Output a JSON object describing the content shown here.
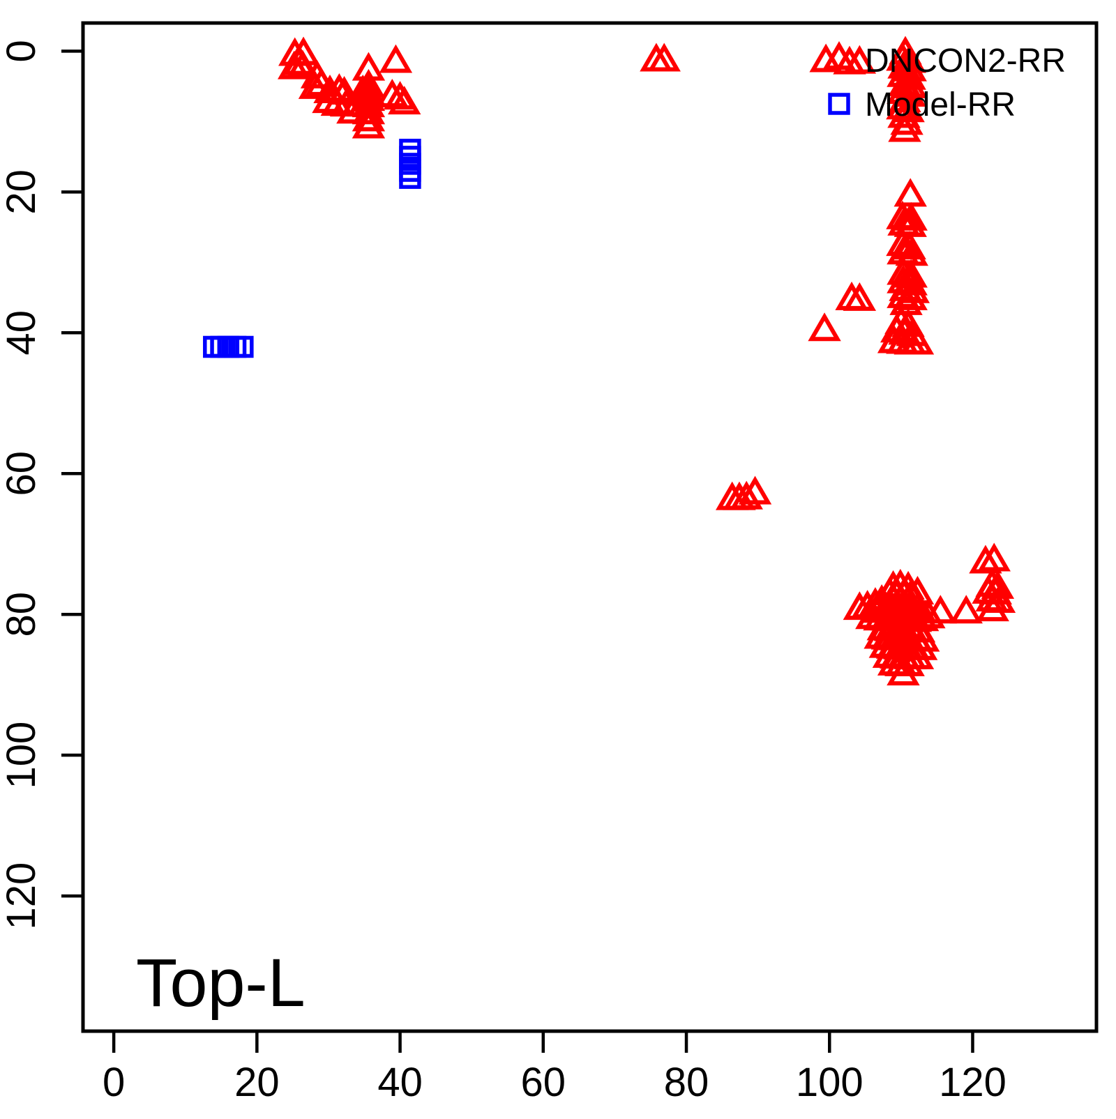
{
  "figure": {
    "annotation": "Top-L",
    "background": "#ffffff",
    "legend": {
      "position": "topright",
      "items": [
        {
          "label": "DNCON2-RR",
          "symbol": "triangle-up-open",
          "color": "#ff0000"
        },
        {
          "label": "Model-RR",
          "symbol": "square-open",
          "color": "#0000ff"
        }
      ]
    }
  },
  "chart_data": {
    "type": "scatter",
    "title": "",
    "xlabel": "",
    "ylabel": "",
    "grid": false,
    "y_axis_reversed": true,
    "xlim": [
      -4.3,
      137.3
    ],
    "ylim": [
      -4.0,
      139.2
    ],
    "x_ticks": [
      0,
      20,
      40,
      60,
      80,
      100,
      120
    ],
    "y_ticks": [
      0,
      20,
      40,
      60,
      80,
      100,
      120
    ],
    "annotation": "Top-L",
    "legend_position": "topright",
    "series": [
      {
        "name": "DNCON2-RR",
        "marker": "triangle-up-open",
        "color": "#ff0000",
        "points": [
          [
            25.3,
            0.7
          ],
          [
            26.5,
            0.6
          ],
          [
            25.9,
            2.0
          ],
          [
            25.2,
            2.6
          ],
          [
            26.4,
            2.5
          ],
          [
            28.4,
            3.9
          ],
          [
            29.0,
            5.0
          ],
          [
            28.1,
            5.4
          ],
          [
            30.2,
            6.0
          ],
          [
            31.5,
            5.8
          ],
          [
            32.2,
            6.2
          ],
          [
            30.0,
            7.4
          ],
          [
            31.2,
            7.8
          ],
          [
            32.5,
            7.9
          ],
          [
            33.4,
            8.9
          ],
          [
            35.6,
            2.8
          ],
          [
            34.8,
            6.0
          ],
          [
            35.6,
            5.2
          ],
          [
            35.6,
            6.2
          ],
          [
            35.6,
            7.1
          ],
          [
            34.9,
            7.9
          ],
          [
            35.6,
            8.0
          ],
          [
            35.6,
            9.0
          ],
          [
            35.6,
            10.0
          ],
          [
            35.6,
            11.0
          ],
          [
            39.4,
            1.7
          ],
          [
            38.9,
            6.6
          ],
          [
            40.0,
            6.9
          ],
          [
            40.6,
            7.6
          ],
          [
            75.8,
            1.5
          ],
          [
            76.9,
            1.5
          ],
          [
            99.5,
            1.6
          ],
          [
            102.8,
            1.9
          ],
          [
            104.2,
            1.8
          ],
          [
            110.6,
            0.5
          ],
          [
            110.2,
            1.4
          ],
          [
            111.2,
            1.7
          ],
          [
            110.4,
            2.5
          ],
          [
            111.3,
            2.9
          ],
          [
            110.3,
            3.7
          ],
          [
            111.2,
            4.1
          ],
          [
            110.5,
            5.0
          ],
          [
            111.4,
            5.3
          ],
          [
            110.3,
            6.1
          ],
          [
            111.2,
            6.5
          ],
          [
            110.5,
            7.3
          ],
          [
            110.2,
            8.3
          ],
          [
            111.0,
            8.7
          ],
          [
            110.4,
            9.5
          ],
          [
            110.8,
            10.5
          ],
          [
            110.5,
            11.5
          ],
          [
            111.3,
            20.7
          ],
          [
            110.2,
            23.9
          ],
          [
            111.4,
            24.1
          ],
          [
            110.4,
            24.8
          ],
          [
            111.3,
            25.0
          ],
          [
            110.2,
            27.7
          ],
          [
            111.2,
            28.2
          ],
          [
            110.3,
            28.9
          ],
          [
            111.5,
            29.1
          ],
          [
            110.3,
            31.8
          ],
          [
            111.4,
            32.2
          ],
          [
            110.3,
            33.0
          ],
          [
            111.4,
            33.3
          ],
          [
            110.6,
            34.1
          ],
          [
            111.7,
            34.4
          ],
          [
            110.3,
            35.1
          ],
          [
            111.4,
            35.4
          ],
          [
            110.7,
            36.1
          ],
          [
            103.1,
            35.4
          ],
          [
            104.2,
            35.5
          ],
          [
            99.3,
            39.8
          ],
          [
            110.0,
            38.8
          ],
          [
            111.0,
            39.2
          ],
          [
            109.4,
            40.0
          ],
          [
            110.5,
            40.3
          ],
          [
            111.6,
            40.5
          ],
          [
            109.0,
            41.5
          ],
          [
            110.2,
            41.6
          ],
          [
            111.3,
            41.7
          ],
          [
            112.3,
            41.7
          ],
          [
            86.4,
            63.8
          ],
          [
            87.4,
            63.8
          ],
          [
            88.4,
            63.7
          ],
          [
            89.6,
            63.0
          ],
          [
            104.2,
            79.4
          ],
          [
            105.3,
            79.2
          ],
          [
            106.4,
            78.8
          ],
          [
            107.3,
            78.4
          ],
          [
            106.7,
            79.8
          ],
          [
            107.7,
            79.7
          ],
          [
            108.7,
            79.6
          ],
          [
            109.7,
            79.5
          ],
          [
            110.7,
            79.5
          ],
          [
            111.7,
            79.6
          ],
          [
            112.7,
            79.8
          ],
          [
            105.9,
            80.7
          ],
          [
            107.0,
            80.9
          ],
          [
            108.0,
            80.9
          ],
          [
            109.0,
            81.0
          ],
          [
            110.0,
            81.0
          ],
          [
            111.0,
            81.1
          ],
          [
            112.0,
            81.1
          ],
          [
            113.0,
            81.0
          ],
          [
            113.9,
            80.6
          ],
          [
            108.9,
            76.4
          ],
          [
            109.9,
            76.2
          ],
          [
            111.0,
            76.5
          ],
          [
            108.4,
            77.3
          ],
          [
            109.4,
            77.5
          ],
          [
            110.4,
            77.4
          ],
          [
            111.4,
            77.6
          ],
          [
            112.3,
            77.2
          ],
          [
            107.5,
            82.3
          ],
          [
            108.5,
            82.4
          ],
          [
            109.5,
            82.4
          ],
          [
            110.5,
            82.5
          ],
          [
            111.5,
            82.5
          ],
          [
            112.5,
            82.6
          ],
          [
            107.1,
            83.5
          ],
          [
            108.1,
            83.6
          ],
          [
            109.1,
            83.7
          ],
          [
            110.1,
            83.7
          ],
          [
            111.1,
            83.8
          ],
          [
            112.1,
            83.8
          ],
          [
            113.1,
            83.9
          ],
          [
            107.8,
            84.8
          ],
          [
            108.8,
            84.9
          ],
          [
            109.8,
            85.0
          ],
          [
            110.8,
            85.0
          ],
          [
            111.8,
            85.1
          ],
          [
            112.8,
            85.1
          ],
          [
            108.3,
            86.2
          ],
          [
            109.3,
            86.3
          ],
          [
            110.3,
            86.3
          ],
          [
            111.3,
            86.4
          ],
          [
            112.3,
            86.4
          ],
          [
            109.0,
            87.3
          ],
          [
            110.0,
            87.4
          ],
          [
            111.0,
            87.4
          ],
          [
            110.3,
            88.7
          ],
          [
            115.5,
            79.9
          ],
          [
            119.1,
            79.9
          ],
          [
            121.8,
            72.8
          ],
          [
            123.0,
            72.5
          ],
          [
            122.7,
            76.1
          ],
          [
            123.5,
            76.4
          ],
          [
            122.2,
            77.1
          ],
          [
            123.2,
            77.2
          ],
          [
            122.7,
            78.2
          ],
          [
            123.7,
            78.4
          ],
          [
            122.8,
            79.6
          ]
        ]
      },
      {
        "name": "Model-RR",
        "marker": "square-open",
        "color": "#0000ff",
        "points": [
          [
            41.4,
            14
          ],
          [
            41.4,
            15
          ],
          [
            41.4,
            16
          ],
          [
            41.4,
            17
          ],
          [
            41.4,
            18
          ],
          [
            14,
            42
          ],
          [
            15,
            42
          ],
          [
            16,
            42
          ],
          [
            17,
            42
          ],
          [
            18,
            42
          ]
        ]
      }
    ]
  }
}
